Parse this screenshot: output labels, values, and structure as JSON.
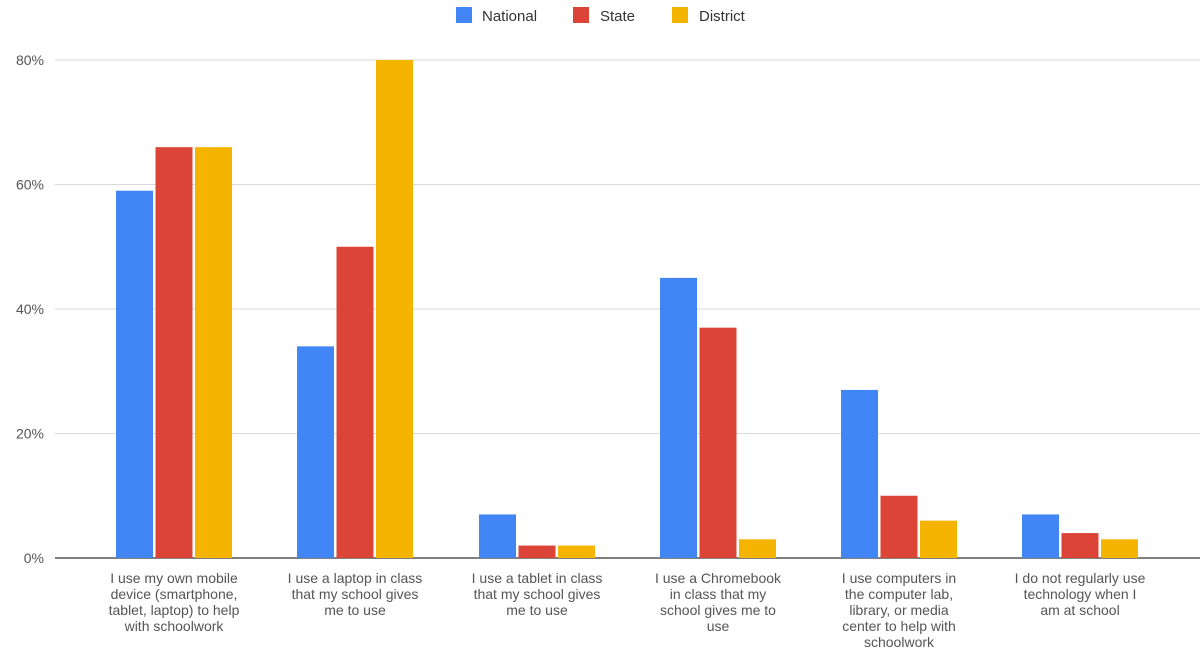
{
  "chart_data": {
    "type": "bar",
    "categories": [
      "I use my own mobile device (smartphone, tablet, laptop) to help with schoolwork",
      "I use a laptop in class that my school gives me to use",
      "I use a tablet in class that my school gives me to use",
      "I use a Chromebook in class that my school gives me to use",
      "I use computers in the computer lab, library, or media center to help with schoolwork",
      "I do not regularly use technology when I am at school"
    ],
    "category_lines": [
      [
        "I use my own mobile",
        "device (smartphone,",
        "tablet, laptop) to help",
        "with schoolwork"
      ],
      [
        "I use a laptop in class",
        "that my school gives",
        "me to use"
      ],
      [
        "I use a tablet in class",
        "that my school gives",
        "me to use"
      ],
      [
        "I use a Chromebook",
        "in class that my",
        "school gives me to",
        "use"
      ],
      [
        "I use computers in",
        "the computer lab,",
        "library, or media",
        "center to help with",
        "schoolwork"
      ],
      [
        "I do not regularly use",
        "technology when I",
        "am at school"
      ]
    ],
    "series": [
      {
        "name": "National",
        "color": "#4285f4",
        "values": [
          59,
          34,
          7,
          45,
          27,
          7
        ]
      },
      {
        "name": "State",
        "color": "#db4437",
        "values": [
          66,
          50,
          2,
          37,
          10,
          4
        ]
      },
      {
        "name": "District",
        "color": "#f4b400",
        "values": [
          66,
          80,
          2,
          3,
          6,
          3
        ]
      }
    ],
    "ylim": [
      0,
      80
    ],
    "yticks": [
      0,
      20,
      40,
      60,
      80
    ],
    "ytick_labels": [
      "0%",
      "20%",
      "40%",
      "60%",
      "80%"
    ],
    "grid": true,
    "legend_position": "top-center",
    "title": "",
    "xlabel": "",
    "ylabel": ""
  }
}
